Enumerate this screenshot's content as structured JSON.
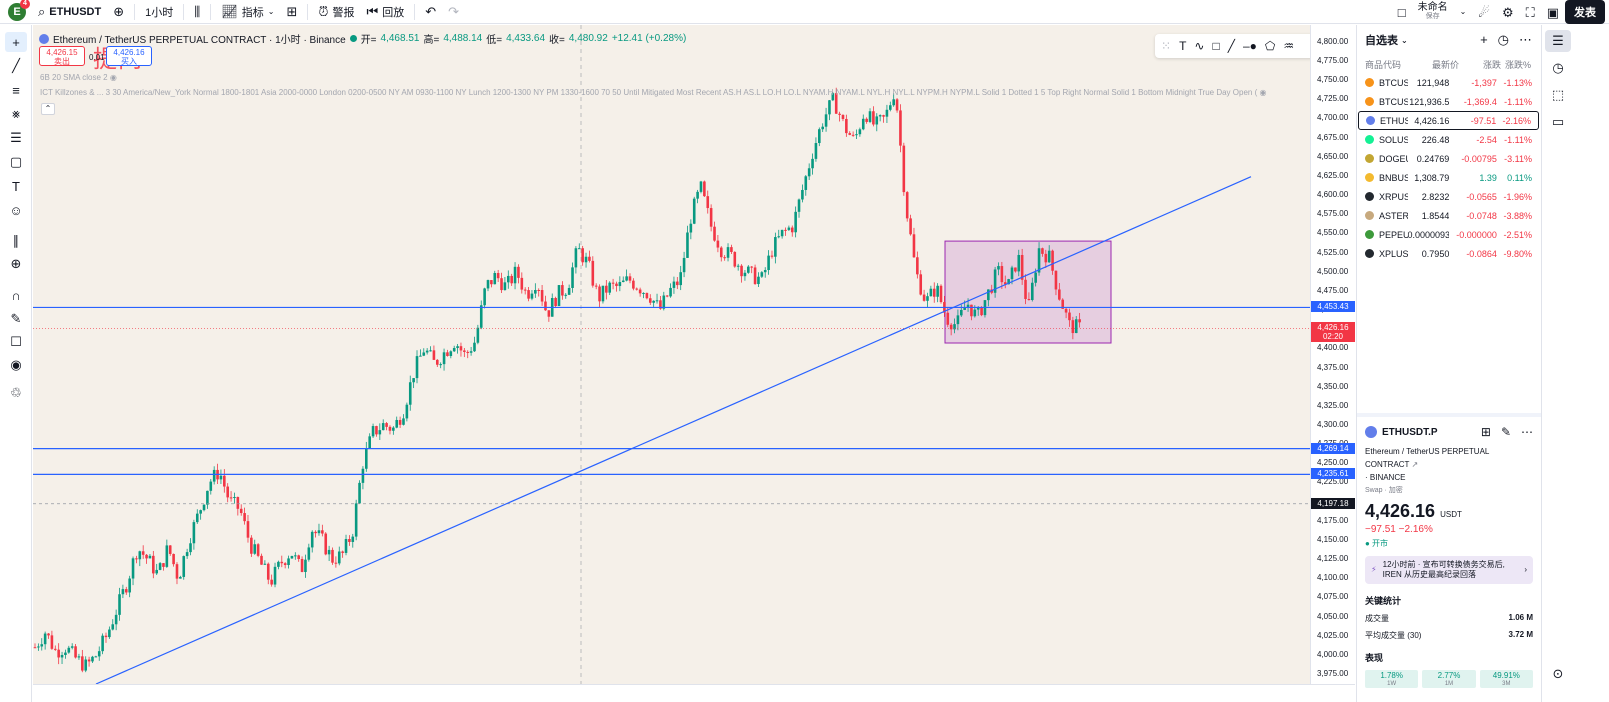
{
  "topbar": {
    "avatar_letter": "E",
    "avatar_badge": "4",
    "symbol": "ETHUSDT",
    "interval": "1小时",
    "indicators": "指标",
    "alerts": "警报",
    "replay": "回放",
    "layout_name": "未命名",
    "layout_sub": "保存",
    "publish": "发表"
  },
  "chart": {
    "title": "Ethereum / TetherUS PERPETUAL CONTRACT · 1小时 · Binance",
    "ohlc": {
      "o_label": "开=",
      "o": "4,468.51",
      "h_label": "高=",
      "h": "4,488.14",
      "l_label": "低=",
      "l": "4,433.64",
      "c_label": "收=",
      "c": "4,480.92",
      "chg": "+12.41 (+0.28%)"
    },
    "sell_price": "4,426.15",
    "sell_label": "卖出",
    "spread": "0.01",
    "buy_price": "4,426.16",
    "buy_label": "买入",
    "watermark": "提问",
    "indicator1": "6B 20 SMA close 2",
    "indicator2": "ICT Killzones & ...  3 30 America/New_York Normal 1800-1801 Asia 2000-0000 London 0200-0500 NY AM 0930-1100 NY Lunch 1200-1300 NY PM 1330-1600 70 50 Until Mitigated Most Recent AS.H AS.L LO.H LO.L NYAM.H NYAM.L NYL.H NYL.L NYPM.H NYPM.L Solid 1 Dotted 1 5 Top Right Normal Solid 1 Bottom Midnight True Day Open ("
  },
  "chart_data": {
    "type": "candlestick",
    "ylim": [
      3962,
      4822
    ],
    "y_ticks": [
      4800,
      4775,
      4750,
      4725,
      4700,
      4675,
      4650,
      4625,
      4600,
      4575,
      4550,
      4525,
      4500,
      4475,
      4450,
      4425,
      4400,
      4375,
      4350,
      4325,
      4300,
      4275,
      4250,
      4225,
      4200,
      4175,
      4150,
      4125,
      4100,
      4075,
      4050,
      4025,
      4000,
      3975
    ],
    "close_path": [
      4010,
      4030,
      4005,
      4010,
      3995,
      3985,
      4000,
      4025,
      4060,
      4095,
      4140,
      4125,
      4105,
      4140,
      4100,
      4150,
      4185,
      4225,
      4240,
      4200,
      4190,
      4145,
      4120,
      4095,
      4120,
      4135,
      4110,
      4165,
      4150,
      4125,
      4130,
      4160,
      4250,
      4290,
      4300,
      4295,
      4320,
      4370,
      4400,
      4380,
      4395,
      4410,
      4390,
      4410,
      4480,
      4495,
      4480,
      4500,
      4470,
      4490,
      4445,
      4470,
      4480,
      4530,
      4510,
      4465,
      4480,
      4480,
      4490,
      4480,
      4470,
      4450,
      4475,
      4490,
      4570,
      4610,
      4560,
      4530,
      4520,
      4505,
      4495,
      4490,
      4530,
      4550,
      4560,
      4610,
      4660,
      4700,
      4725,
      4690,
      4670,
      4710,
      4690,
      4700,
      4740,
      4590,
      4500,
      4460,
      4480,
      4440,
      4430,
      4460,
      4440,
      4470,
      4500,
      4480,
      4520,
      4450,
      4530,
      4520,
      4470,
      4430,
      4426.16
    ],
    "levels": [
      {
        "label": "4,453.43",
        "value": 4453.43,
        "style": "solid"
      },
      {
        "label": "4,269.14",
        "value": 4269.14,
        "style": "solid"
      },
      {
        "label": "4,235.61",
        "value": 4235.61,
        "style": "solid"
      },
      {
        "label": "4,197.18",
        "value": 4197.18,
        "style": "dashed"
      }
    ],
    "current": {
      "label": "4,426.16",
      "value": 4426.16,
      "countdown": "02:20"
    },
    "trendline": {
      "from": 3962,
      "to": 4624
    },
    "rectangle": {
      "top": 4540,
      "bottom": 4407
    }
  },
  "watchlist": {
    "title": "自选表",
    "columns": {
      "symbol": "商品代码",
      "last": "最新价",
      "chg": "涨跌",
      "pct": "涨跌%"
    },
    "rows": [
      {
        "sym": "BTCUSD",
        "last": "121,948",
        "chg": "-1,397",
        "pct": "-1.13%",
        "color": "#f7931a",
        "sel": false
      },
      {
        "sym": "BTCUSD",
        "last": "121,936.5",
        "chg": "-1,369.4",
        "pct": "-1.11%",
        "color": "#f7931a",
        "sel": false
      },
      {
        "sym": "ETHUSD",
        "last": "4,426.16",
        "chg": "-97.51",
        "pct": "-2.16%",
        "color": "#627eea",
        "sel": true
      },
      {
        "sym": "SOLUSD",
        "last": "226.48",
        "chg": "-2.54",
        "pct": "-1.11%",
        "color": "#14f195",
        "sel": false
      },
      {
        "sym": "DOGEU",
        "last": "0.24769",
        "chg": "-0.00795",
        "pct": "-3.11%",
        "color": "#c2a633",
        "sel": false
      },
      {
        "sym": "BNBUSD",
        "last": "1,308.79",
        "chg": "1.39",
        "pct": "0.11%",
        "color": "#f3ba2f",
        "sel": false
      },
      {
        "sym": "XRPUSD",
        "last": "2.8232",
        "chg": "-0.0565",
        "pct": "-1.96%",
        "color": "#23292f",
        "sel": false
      },
      {
        "sym": "ASTERU",
        "last": "1.8544",
        "chg": "-0.0748",
        "pct": "-3.88%",
        "color": "#c7a97e",
        "sel": false
      },
      {
        "sym": "PEPEUS",
        "last": "0.0000093",
        "chg": "-0.000000",
        "pct": "-2.51%",
        "color": "#3d9a3b",
        "sel": false
      },
      {
        "sym": "XPLUSD",
        "last": "0.7950",
        "chg": "-0.0864",
        "pct": "-9.80%",
        "color": "#23292f",
        "sel": false
      }
    ]
  },
  "details": {
    "symbol": "ETHUSDT.P",
    "name": "Ethereum / TetherUS PERPETUAL CONTRACT",
    "exchange": "· BINANCE",
    "sub": "Swap · 加密",
    "price": "4,426.16",
    "currency": "USDT",
    "change": "−97.51 −2.16%",
    "status": "● 开市",
    "news": "12小时前 · 宣布可转换债务交易后, IREN 从历史最高纪录回落",
    "stats_title": "关键统计",
    "volume_label": "成交量",
    "volume": "1.06 M",
    "avg_volume_label": "平均成交量 (30)",
    "avg_volume": "3.72 M",
    "perf_title": "表现",
    "perf": [
      {
        "value": "1.78%",
        "period": "1W"
      },
      {
        "value": "2.77%",
        "period": "1M"
      },
      {
        "value": "49.91%",
        "period": "3M"
      }
    ]
  }
}
